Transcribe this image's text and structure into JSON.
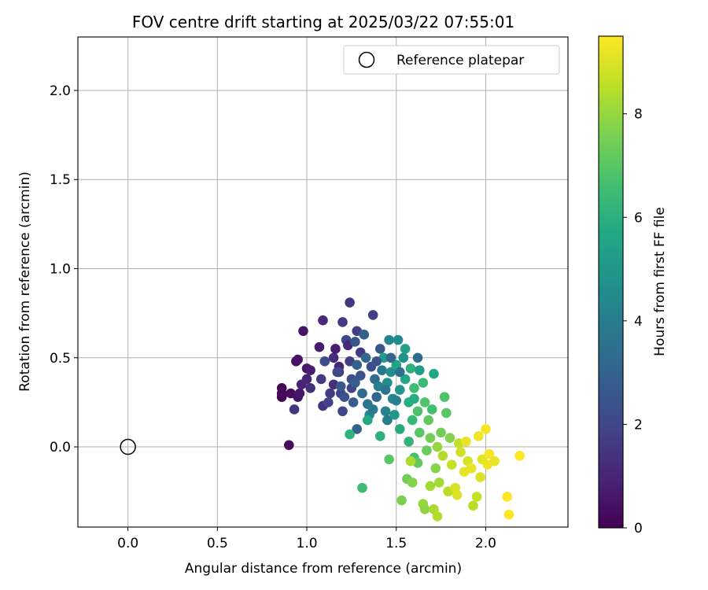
{
  "chart_data": {
    "type": "scatter",
    "title": "FOV centre drift starting at 2025/03/22 07:55:01",
    "xlabel": "Angular distance from reference (arcmin)",
    "ylabel": "Rotation from reference (arcmin)",
    "xlim": [
      -0.28,
      2.46
    ],
    "ylim": [
      -0.45,
      2.3
    ],
    "xticks": [
      0.0,
      0.5,
      1.0,
      1.5,
      2.0
    ],
    "xtick_labels": [
      "0.0",
      "0.5",
      "1.0",
      "1.5",
      "2.0"
    ],
    "yticks": [
      0.0,
      0.5,
      1.0,
      1.5,
      2.0
    ],
    "ytick_labels": [
      "0.0",
      "0.5",
      "1.0",
      "1.5",
      "2.0"
    ],
    "grid": true,
    "legend": {
      "placement": "top-right",
      "entries": [
        "Reference platepar"
      ]
    },
    "reference_point": {
      "x": 0.0,
      "y": 0.0,
      "label": "Reference platepar"
    },
    "colorbar": {
      "label": "Hours from first FF file",
      "colormap": "viridis",
      "range": [
        0,
        9.5
      ],
      "ticks": [
        0,
        2,
        4,
        6,
        8
      ],
      "tick_labels": [
        "0",
        "2",
        "4",
        "6",
        "8"
      ]
    },
    "points": [
      {
        "x": 0.86,
        "y": 0.33,
        "c": 0.1
      },
      {
        "x": 0.86,
        "y": 0.28,
        "c": 0.0
      },
      {
        "x": 0.86,
        "y": 0.3,
        "c": 0.2
      },
      {
        "x": 0.91,
        "y": 0.3,
        "c": 0.3
      },
      {
        "x": 0.9,
        "y": 0.01,
        "c": 0.3
      },
      {
        "x": 0.94,
        "y": 0.48,
        "c": 0.4
      },
      {
        "x": 0.95,
        "y": 0.49,
        "c": 0.5
      },
      {
        "x": 0.95,
        "y": 0.28,
        "c": 0.5
      },
      {
        "x": 0.96,
        "y": 0.3,
        "c": 0.6
      },
      {
        "x": 0.98,
        "y": 0.65,
        "c": 0.5
      },
      {
        "x": 1.0,
        "y": 0.44,
        "c": 0.6
      },
      {
        "x": 1.02,
        "y": 0.43,
        "c": 0.8
      },
      {
        "x": 0.97,
        "y": 0.35,
        "c": 0.9
      },
      {
        "x": 1.0,
        "y": 0.38,
        "c": 1.0
      },
      {
        "x": 1.02,
        "y": 0.33,
        "c": 1.3
      },
      {
        "x": 0.93,
        "y": 0.21,
        "c": 1.5
      },
      {
        "x": 1.07,
        "y": 0.56,
        "c": 0.7
      },
      {
        "x": 1.09,
        "y": 0.71,
        "c": 1.1
      },
      {
        "x": 1.08,
        "y": 0.38,
        "c": 1.6
      },
      {
        "x": 1.1,
        "y": 0.48,
        "c": 2.2
      },
      {
        "x": 1.09,
        "y": 0.23,
        "c": 1.4
      },
      {
        "x": 1.13,
        "y": 0.3,
        "c": 1.7
      },
      {
        "x": 1.12,
        "y": 0.25,
        "c": 1.9
      },
      {
        "x": 1.15,
        "y": 0.5,
        "c": 1.2
      },
      {
        "x": 1.16,
        "y": 0.55,
        "c": 0.8
      },
      {
        "x": 1.18,
        "y": 0.45,
        "c": 1.0
      },
      {
        "x": 1.15,
        "y": 0.35,
        "c": 1.3
      },
      {
        "x": 1.18,
        "y": 0.42,
        "c": 1.5
      },
      {
        "x": 1.19,
        "y": 0.3,
        "c": 1.8
      },
      {
        "x": 1.2,
        "y": 0.2,
        "c": 2.0
      },
      {
        "x": 1.21,
        "y": 0.28,
        "c": 2.4
      },
      {
        "x": 1.2,
        "y": 0.7,
        "c": 1.6
      },
      {
        "x": 1.22,
        "y": 0.6,
        "c": 2.0
      },
      {
        "x": 1.24,
        "y": 0.81,
        "c": 1.5
      },
      {
        "x": 1.23,
        "y": 0.57,
        "c": 1.1
      },
      {
        "x": 1.24,
        "y": 0.48,
        "c": 1.7
      },
      {
        "x": 1.25,
        "y": 0.38,
        "c": 2.3
      },
      {
        "x": 1.25,
        "y": 0.33,
        "c": 1.9
      },
      {
        "x": 1.26,
        "y": 0.25,
        "c": 2.7
      },
      {
        "x": 1.27,
        "y": 0.59,
        "c": 2.6
      },
      {
        "x": 1.28,
        "y": 0.65,
        "c": 1.8
      },
      {
        "x": 1.28,
        "y": 0.46,
        "c": 2.9
      },
      {
        "x": 1.28,
        "y": 0.1,
        "c": 3.0
      },
      {
        "x": 1.3,
        "y": 0.53,
        "c": 1.6
      },
      {
        "x": 1.3,
        "y": 0.4,
        "c": 2.5
      },
      {
        "x": 1.31,
        "y": 0.3,
        "c": 3.4
      },
      {
        "x": 1.32,
        "y": 0.63,
        "c": 2.9
      },
      {
        "x": 1.33,
        "y": 0.5,
        "c": 3.2
      },
      {
        "x": 1.34,
        "y": 0.24,
        "c": 3.7
      },
      {
        "x": 1.35,
        "y": 0.18,
        "c": 4.5
      },
      {
        "x": 1.37,
        "y": 0.74,
        "c": 1.8
      },
      {
        "x": 1.36,
        "y": 0.45,
        "c": 2.2
      },
      {
        "x": 1.38,
        "y": 0.38,
        "c": 3.3
      },
      {
        "x": 1.39,
        "y": 0.28,
        "c": 3.1
      },
      {
        "x": 1.4,
        "y": 0.34,
        "c": 4.0
      },
      {
        "x": 1.41,
        "y": 0.55,
        "c": 2.6
      },
      {
        "x": 1.42,
        "y": 0.43,
        "c": 3.8
      },
      {
        "x": 1.43,
        "y": 0.5,
        "c": 5.2
      },
      {
        "x": 1.44,
        "y": 0.2,
        "c": 4.2
      },
      {
        "x": 1.45,
        "y": 0.15,
        "c": 3.9
      },
      {
        "x": 1.45,
        "y": 0.36,
        "c": 4.6
      },
      {
        "x": 1.46,
        "y": 0.6,
        "c": 4.3
      },
      {
        "x": 1.47,
        "y": 0.42,
        "c": 4.7
      },
      {
        "x": 1.48,
        "y": 0.27,
        "c": 4.4
      },
      {
        "x": 1.49,
        "y": 0.18,
        "c": 5.0
      },
      {
        "x": 1.5,
        "y": 0.46,
        "c": 5.5
      },
      {
        "x": 1.51,
        "y": 0.6,
        "c": 4.5
      },
      {
        "x": 1.52,
        "y": 0.32,
        "c": 4.9
      },
      {
        "x": 1.52,
        "y": 0.1,
        "c": 5.8
      },
      {
        "x": 1.54,
        "y": 0.5,
        "c": 4.8
      },
      {
        "x": 1.55,
        "y": 0.55,
        "c": 5.4
      },
      {
        "x": 1.55,
        "y": 0.38,
        "c": 5.6
      },
      {
        "x": 1.57,
        "y": 0.25,
        "c": 5.9
      },
      {
        "x": 1.57,
        "y": 0.03,
        "c": 6.2
      },
      {
        "x": 1.58,
        "y": 0.44,
        "c": 6.0
      },
      {
        "x": 1.59,
        "y": 0.15,
        "c": 6.3
      },
      {
        "x": 1.6,
        "y": 0.33,
        "c": 6.5
      },
      {
        "x": 1.6,
        "y": -0.06,
        "c": 6.7
      },
      {
        "x": 1.62,
        "y": 0.2,
        "c": 6.8
      },
      {
        "x": 1.63,
        "y": 0.08,
        "c": 7.0
      },
      {
        "x": 1.63,
        "y": 0.43,
        "c": 5.2
      },
      {
        "x": 1.65,
        "y": 0.36,
        "c": 6.4
      },
      {
        "x": 1.66,
        "y": 0.25,
        "c": 6.9
      },
      {
        "x": 1.67,
        "y": -0.02,
        "c": 7.3
      },
      {
        "x": 1.68,
        "y": 0.15,
        "c": 7.2
      },
      {
        "x": 1.69,
        "y": 0.05,
        "c": 7.5
      },
      {
        "x": 1.7,
        "y": 0.21,
        "c": 6.6
      },
      {
        "x": 1.71,
        "y": 0.41,
        "c": 5.6
      },
      {
        "x": 1.72,
        "y": -0.12,
        "c": 7.8
      },
      {
        "x": 1.73,
        "y": 0.0,
        "c": 8.0
      },
      {
        "x": 1.74,
        "y": -0.2,
        "c": 8.2
      },
      {
        "x": 1.75,
        "y": 0.08,
        "c": 7.4
      },
      {
        "x": 1.76,
        "y": -0.05,
        "c": 8.4
      },
      {
        "x": 1.77,
        "y": 0.28,
        "c": 6.8
      },
      {
        "x": 1.78,
        "y": 0.19,
        "c": 7.0
      },
      {
        "x": 1.79,
        "y": -0.25,
        "c": 8.5
      },
      {
        "x": 1.8,
        "y": 0.05,
        "c": 7.7
      },
      {
        "x": 1.81,
        "y": -0.1,
        "c": 8.7
      },
      {
        "x": 1.83,
        "y": -0.23,
        "c": 8.9
      },
      {
        "x": 1.84,
        "y": -0.27,
        "c": 9.0
      },
      {
        "x": 1.85,
        "y": 0.02,
        "c": 8.6
      },
      {
        "x": 1.86,
        "y": -0.03,
        "c": 8.8
      },
      {
        "x": 1.88,
        "y": -0.14,
        "c": 9.1
      },
      {
        "x": 1.89,
        "y": 0.03,
        "c": 9.2
      },
      {
        "x": 1.9,
        "y": -0.08,
        "c": 8.9
      },
      {
        "x": 1.92,
        "y": -0.12,
        "c": 9.2
      },
      {
        "x": 1.93,
        "y": -0.33,
        "c": 8.5
      },
      {
        "x": 1.95,
        "y": -0.28,
        "c": 8.7
      },
      {
        "x": 1.96,
        "y": 0.06,
        "c": 9.3
      },
      {
        "x": 1.97,
        "y": -0.17,
        "c": 9.0
      },
      {
        "x": 1.98,
        "y": -0.07,
        "c": 9.1
      },
      {
        "x": 2.0,
        "y": 0.1,
        "c": 9.4
      },
      {
        "x": 2.01,
        "y": -0.1,
        "c": 9.3
      },
      {
        "x": 2.02,
        "y": -0.04,
        "c": 9.4
      },
      {
        "x": 2.05,
        "y": -0.08,
        "c": 9.2
      },
      {
        "x": 2.12,
        "y": -0.28,
        "c": 9.5
      },
      {
        "x": 2.13,
        "y": -0.38,
        "c": 9.5
      },
      {
        "x": 2.19,
        "y": -0.05,
        "c": 9.5
      },
      {
        "x": 1.31,
        "y": -0.23,
        "c": 6.5
      },
      {
        "x": 1.24,
        "y": 0.07,
        "c": 6.1
      },
      {
        "x": 1.34,
        "y": 0.15,
        "c": 5.7
      },
      {
        "x": 1.41,
        "y": 0.06,
        "c": 6.0
      },
      {
        "x": 1.46,
        "y": -0.07,
        "c": 7.0
      },
      {
        "x": 1.53,
        "y": -0.3,
        "c": 7.6
      },
      {
        "x": 1.56,
        "y": -0.18,
        "c": 7.4
      },
      {
        "x": 1.59,
        "y": -0.2,
        "c": 7.7
      },
      {
        "x": 1.62,
        "y": -0.09,
        "c": 7.2
      },
      {
        "x": 1.65,
        "y": -0.32,
        "c": 8.0
      },
      {
        "x": 1.66,
        "y": -0.35,
        "c": 7.9
      },
      {
        "x": 1.69,
        "y": -0.22,
        "c": 8.2
      },
      {
        "x": 1.71,
        "y": -0.35,
        "c": 8.3
      },
      {
        "x": 1.73,
        "y": -0.39,
        "c": 8.4
      },
      {
        "x": 1.58,
        "y": -0.08,
        "c": 8.3
      },
      {
        "x": 1.6,
        "y": 0.27,
        "c": 5.9
      },
      {
        "x": 1.62,
        "y": 0.5,
        "c": 3.3
      },
      {
        "x": 1.5,
        "y": 0.26,
        "c": 4.1
      },
      {
        "x": 1.47,
        "y": 0.5,
        "c": 3.1
      },
      {
        "x": 1.52,
        "y": 0.42,
        "c": 3.5
      },
      {
        "x": 1.44,
        "y": 0.32,
        "c": 3.6
      },
      {
        "x": 1.37,
        "y": 0.21,
        "c": 3.8
      },
      {
        "x": 1.39,
        "y": 0.48,
        "c": 2.4
      },
      {
        "x": 1.27,
        "y": 0.36,
        "c": 2.8
      },
      {
        "x": 1.17,
        "y": 0.42,
        "c": 2.1
      },
      {
        "x": 1.19,
        "y": 0.34,
        "c": 2.6
      }
    ]
  }
}
